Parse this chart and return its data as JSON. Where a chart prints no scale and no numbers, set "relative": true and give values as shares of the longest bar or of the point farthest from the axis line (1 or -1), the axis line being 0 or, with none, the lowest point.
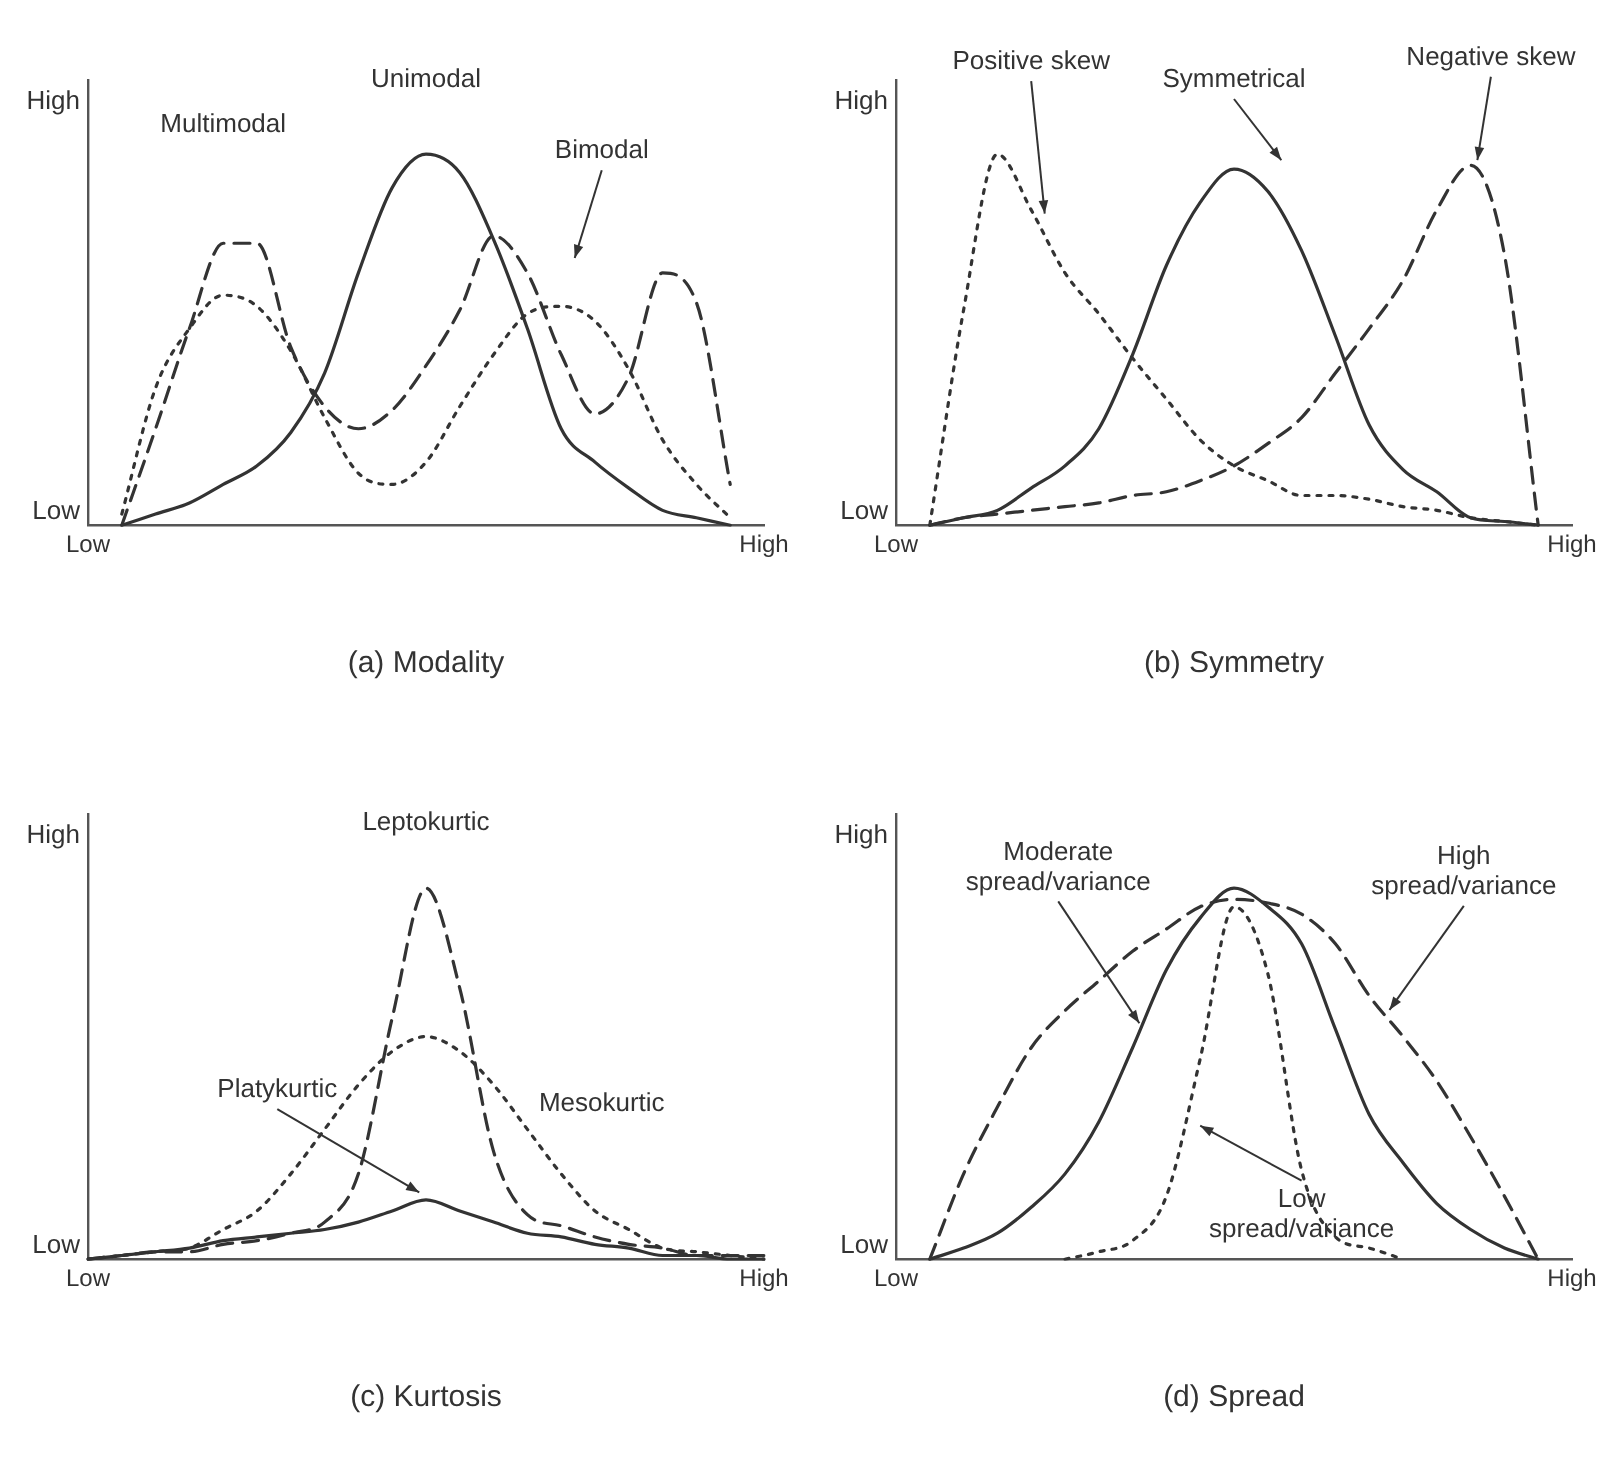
{
  "chart_data": [
    {
      "type": "line",
      "relative": true,
      "title": "(a) Modality",
      "categories": [
        "Low",
        null,
        null,
        null,
        null,
        null,
        null,
        null,
        null,
        null,
        null,
        null,
        null,
        null,
        null,
        null,
        null,
        null,
        null,
        null,
        "High"
      ],
      "grid": false,
      "legend": false,
      "marker": "none",
      "series": [
        {
          "color": "#333333",
          "line_style": "solid",
          "values": [
            null,
            0,
            0.03,
            0.06,
            0.11,
            0.16,
            0.25,
            0.41,
            0.68,
            0.91,
            1,
            0.95,
            0.77,
            0.53,
            0.26,
            0.17,
            0.1,
            0.04,
            0.02,
            0,
            null
          ]
        },
        {
          "color": "#333333",
          "line_style": "dashed",
          "values": [
            null,
            0,
            0.26,
            0.53,
            0.76,
            0.76,
            0.48,
            0.32,
            0.26,
            0.31,
            0.43,
            0.58,
            0.78,
            0.68,
            0.46,
            0.3,
            0.4,
            0.68,
            0.6,
            0.11,
            null
          ]
        },
        {
          "color": "#333333",
          "line_style": "dotted",
          "values": [
            null,
            0.03,
            0.37,
            0.53,
            0.62,
            0.59,
            0.47,
            0.29,
            0.14,
            0.11,
            0.17,
            0.32,
            0.46,
            0.57,
            0.59,
            0.55,
            0.42,
            0.23,
            0.11,
            0.02,
            null
          ]
        }
      ],
      "annotations": [
        "High",
        "Low",
        "Unimodal",
        "Multimodal",
        "Bimodal"
      ]
    },
    {
      "type": "line",
      "relative": true,
      "title": "(b) Symmetry",
      "categories": [
        "Low",
        null,
        null,
        null,
        null,
        null,
        null,
        null,
        null,
        null,
        null,
        null,
        null,
        null,
        null,
        null,
        null,
        null,
        null,
        null,
        "High"
      ],
      "grid": false,
      "legend": false,
      "marker": "none",
      "series": [
        {
          "color": "#333333",
          "line_style": "dotted",
          "values": [
            null,
            0,
            0.58,
            1,
            0.85,
            0.68,
            0.57,
            0.45,
            0.34,
            0.23,
            0.16,
            0.12,
            0.08,
            0.08,
            0.07,
            0.05,
            0.04,
            0.02,
            0.01,
            0,
            null
          ]
        },
        {
          "color": "#333333",
          "line_style": "solid",
          "values": [
            null,
            0,
            0.02,
            0.04,
            0.1,
            0.16,
            0.26,
            0.46,
            0.7,
            0.87,
            0.96,
            0.9,
            0.74,
            0.51,
            0.27,
            0.15,
            0.09,
            0.02,
            0.01,
            0,
            null
          ]
        },
        {
          "color": "#333333",
          "line_style": "dashed",
          "values": [
            null,
            0,
            0.02,
            0.03,
            0.04,
            0.05,
            0.06,
            0.08,
            0.09,
            0.12,
            0.16,
            0.22,
            0.29,
            0.41,
            0.53,
            0.66,
            0.85,
            0.97,
            0.73,
            0,
            null
          ]
        }
      ],
      "annotations": [
        "High",
        "Low",
        "Positive skew",
        "Symmetrical",
        "Negative skew"
      ]
    },
    {
      "type": "line",
      "relative": true,
      "title": "(c) Kurtosis",
      "categories": [
        "Low",
        null,
        null,
        null,
        null,
        null,
        null,
        null,
        null,
        null,
        null,
        null,
        null,
        null,
        null,
        null,
        null,
        null,
        null,
        null,
        "High"
      ],
      "grid": false,
      "legend": false,
      "marker": "none",
      "series": [
        {
          "color": "#333333",
          "line_style": "dashed",
          "values": [
            0,
            0.01,
            0.02,
            0.02,
            0.04,
            0.05,
            0.07,
            0.1,
            0.23,
            0.65,
            1,
            0.73,
            0.29,
            0.12,
            0.09,
            0.06,
            0.04,
            0.03,
            0.01,
            0.01,
            0.01
          ]
        },
        {
          "color": "#333333",
          "line_style": "dotted",
          "values": [
            0,
            0.01,
            0.02,
            0.03,
            0.08,
            0.13,
            0.23,
            0.35,
            0.47,
            0.56,
            0.6,
            0.56,
            0.47,
            0.35,
            0.23,
            0.13,
            0.08,
            0.03,
            0.02,
            0.01,
            0
          ]
        },
        {
          "color": "#333333",
          "line_style": "solid",
          "values": [
            0,
            0.01,
            0.02,
            0.03,
            0.05,
            0.06,
            0.07,
            0.08,
            0.1,
            0.13,
            0.16,
            0.13,
            0.1,
            0.07,
            0.06,
            0.04,
            0.03,
            0.01,
            0.01,
            0,
            0
          ]
        }
      ],
      "annotations": [
        "High",
        "Low",
        "Leptokurtic",
        "Platykurtic",
        "Mesokurtic"
      ]
    },
    {
      "type": "line",
      "relative": true,
      "title": "(d) Spread",
      "categories": [
        "Low",
        null,
        null,
        null,
        null,
        null,
        null,
        null,
        null,
        null,
        null,
        null,
        null,
        null,
        null,
        null,
        null,
        null,
        null,
        null,
        "High"
      ],
      "grid": false,
      "legend": false,
      "marker": "none",
      "series": [
        {
          "color": "#333333",
          "line_style": "dashed",
          "values": [
            null,
            0,
            0.23,
            0.41,
            0.57,
            0.67,
            0.75,
            0.83,
            0.89,
            0.95,
            0.97,
            0.96,
            0.93,
            0.85,
            0.71,
            0.6,
            0.48,
            0.33,
            0.17,
            0,
            null
          ]
        },
        {
          "color": "#333333",
          "line_style": "solid",
          "values": [
            null,
            0,
            0.03,
            0.07,
            0.14,
            0.23,
            0.37,
            0.57,
            0.78,
            0.92,
            1,
            0.95,
            0.85,
            0.62,
            0.39,
            0.26,
            0.15,
            0.08,
            0.03,
            0,
            null
          ]
        },
        {
          "color": "#333333",
          "line_style": "dotted",
          "values": [
            null,
            null,
            null,
            null,
            null,
            0,
            0.02,
            0.05,
            0.17,
            0.54,
            0.95,
            0.77,
            0.24,
            0.06,
            0.03,
            0,
            null,
            null,
            null,
            null,
            null
          ]
        }
      ],
      "annotations": [
        "High",
        "Low",
        "Moderate spread/variance",
        "High spread/variance",
        "Low spread/variance"
      ]
    }
  ]
}
